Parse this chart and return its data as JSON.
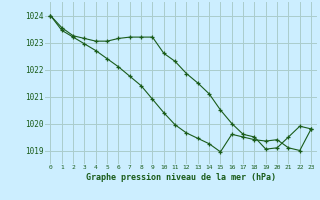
{
  "title": "Graphe pression niveau de la mer (hPa)",
  "background_color": "#cceeff",
  "grid_color": "#aacccc",
  "line_color": "#1a5c1a",
  "xlim": [
    -0.5,
    23.5
  ],
  "ylim": [
    1018.5,
    1024.5
  ],
  "yticks": [
    1019,
    1020,
    1021,
    1022,
    1023,
    1024
  ],
  "xticks": [
    0,
    1,
    2,
    3,
    4,
    5,
    6,
    7,
    8,
    9,
    10,
    11,
    12,
    13,
    14,
    15,
    16,
    17,
    18,
    19,
    20,
    21,
    22,
    23
  ],
  "series1_x": [
    0,
    1,
    2,
    3,
    4,
    5,
    6,
    7,
    8,
    9,
    10,
    11,
    12,
    13,
    14,
    15,
    16,
    17,
    18,
    19,
    20,
    21,
    22,
    23
  ],
  "series1_y": [
    1024.0,
    1023.55,
    1023.25,
    1023.15,
    1023.05,
    1023.05,
    1023.15,
    1023.2,
    1023.2,
    1023.2,
    1022.6,
    1022.3,
    1021.85,
    1021.5,
    1021.1,
    1020.5,
    1020.0,
    1019.6,
    1019.5,
    1019.05,
    1019.1,
    1019.5,
    1019.9,
    1019.8
  ],
  "series2_x": [
    0,
    1,
    2,
    3,
    4,
    5,
    6,
    7,
    8,
    9,
    10,
    11,
    12,
    13,
    14,
    15,
    16,
    17,
    18,
    19,
    20,
    21,
    22,
    23
  ],
  "series2_y": [
    1024.0,
    1023.45,
    1023.2,
    1022.95,
    1022.7,
    1022.4,
    1022.1,
    1021.75,
    1021.4,
    1020.9,
    1020.4,
    1019.95,
    1019.65,
    1019.45,
    1019.25,
    1018.95,
    1019.6,
    1019.5,
    1019.4,
    1019.35,
    1019.4,
    1019.1,
    1019.0,
    1019.8
  ]
}
